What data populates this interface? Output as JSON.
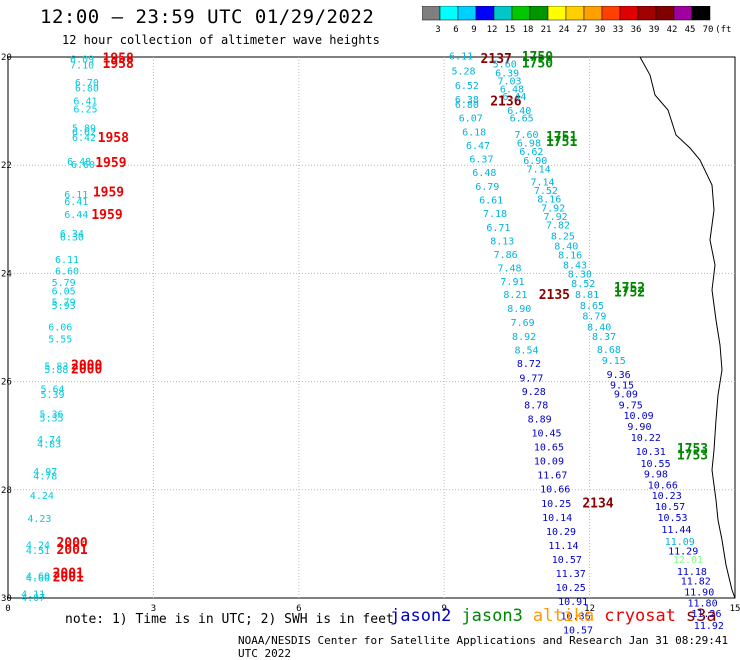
{
  "header": {
    "title": "12:00 – 23:59 UTC 01/29/2022",
    "subtitle": "12 hour collection of altimeter wave heights"
  },
  "scale": {
    "labels": [
      "3",
      "6",
      "9",
      "12",
      "15",
      "18",
      "21",
      "24",
      "27",
      "30",
      "33",
      "36",
      "39",
      "42",
      "45",
      "70",
      "(ft)"
    ],
    "colors": [
      "#7f7f7f",
      "#00ffff",
      "#00d0ff",
      "#0000ff",
      "#00c8c8",
      "#00c800",
      "#009600",
      "#ffff00",
      "#ffd000",
      "#ffa000",
      "#ff4000",
      "#e00000",
      "#a00000",
      "#800000",
      "#a000a0",
      "#000000"
    ]
  },
  "footer": {
    "note": "note: 1) Time is in UTC; 2) SWH is in feet",
    "credit": "NOAA/NESDIS Center for Satellite Applications and Research   Jan 31 08:29:41 UTC 2022"
  },
  "legend": [
    {
      "name": "jason2",
      "color": "#0000cc"
    },
    {
      "name": "jason3",
      "color": "#008800"
    },
    {
      "name": "altika",
      "color": "#ff9900"
    },
    {
      "name": "cryosat",
      "color": "#ee0000"
    },
    {
      "name": "s3a",
      "color": "#880000"
    }
  ],
  "chart_data": {
    "type": "scatter",
    "title": "12:00 – 23:59 UTC 01/29/2022",
    "xlabel": "",
    "ylabel": "",
    "xlim": [
      0,
      15
    ],
    "ylim": [
      20,
      30
    ],
    "y_inverted": true,
    "grid": true,
    "xticks": [
      0,
      3,
      6,
      9,
      12,
      15
    ],
    "yticks": [
      20,
      22,
      24,
      26,
      28,
      30
    ],
    "tick_labels_x": [
      "0",
      "3",
      "6",
      "9",
      "12",
      "15"
    ],
    "tick_labels_y": [
      "20",
      "22",
      "24",
      "26",
      "28",
      "30"
    ],
    "wave_labels": [
      {
        "x": 1.28,
        "y": 20.03,
        "text": "6.09",
        "color": "#00ccdd"
      },
      {
        "x": 1.28,
        "y": 20.14,
        "text": "7.10",
        "color": "#00ccdd"
      },
      {
        "x": 1.38,
        "y": 20.46,
        "text": "6.70",
        "color": "#00ccdd"
      },
      {
        "x": 1.38,
        "y": 20.56,
        "text": "6.80",
        "color": "#00ccdd"
      },
      {
        "x": 1.35,
        "y": 20.8,
        "text": "6.41",
        "color": "#00ccdd"
      },
      {
        "x": 1.35,
        "y": 20.95,
        "text": "6.25",
        "color": "#00ccdd"
      },
      {
        "x": 1.32,
        "y": 21.3,
        "text": "5.89",
        "color": "#00ccdd"
      },
      {
        "x": 1.32,
        "y": 21.38,
        "text": "6.62",
        "color": "#00ccdd"
      },
      {
        "x": 1.32,
        "y": 21.48,
        "text": "6.42",
        "color": "#00ccdd"
      },
      {
        "x": 1.22,
        "y": 21.92,
        "text": "6.48",
        "color": "#00ccdd"
      },
      {
        "x": 1.3,
        "y": 21.98,
        "text": "6.60",
        "color": "#00ccdd"
      },
      {
        "x": 1.16,
        "y": 22.53,
        "text": "6.11",
        "color": "#00ccdd"
      },
      {
        "x": 1.16,
        "y": 22.66,
        "text": "6.41",
        "color": "#00ccdd"
      },
      {
        "x": 1.16,
        "y": 22.9,
        "text": "6.44",
        "color": "#00ccdd"
      },
      {
        "x": 1.07,
        "y": 23.25,
        "text": "6.34",
        "color": "#00ccdd"
      },
      {
        "x": 1.07,
        "y": 23.32,
        "text": "6.30",
        "color": "#00ccdd"
      },
      {
        "x": 0.97,
        "y": 23.73,
        "text": "6.11",
        "color": "#00ccdd"
      },
      {
        "x": 0.97,
        "y": 23.95,
        "text": "6.60",
        "color": "#00ccdd"
      },
      {
        "x": 0.9,
        "y": 24.16,
        "text": "5.79",
        "color": "#00ccdd"
      },
      {
        "x": 0.9,
        "y": 24.32,
        "text": "6.05",
        "color": "#00ccdd"
      },
      {
        "x": 0.9,
        "y": 24.52,
        "text": "5.79",
        "color": "#00ccdd"
      },
      {
        "x": 0.9,
        "y": 24.58,
        "text": "5.93",
        "color": "#00ccdd"
      },
      {
        "x": 0.83,
        "y": 24.98,
        "text": "6.06",
        "color": "#00ccdd"
      },
      {
        "x": 0.83,
        "y": 25.2,
        "text": "5.55",
        "color": "#00ccdd"
      },
      {
        "x": 0.75,
        "y": 25.7,
        "text": "5.83",
        "color": "#00ccdd"
      },
      {
        "x": 0.75,
        "y": 25.77,
        "text": "5.88",
        "color": "#00ccdd"
      },
      {
        "x": 0.67,
        "y": 26.13,
        "text": "5.64",
        "color": "#00ccdd"
      },
      {
        "x": 0.67,
        "y": 26.23,
        "text": "5.39",
        "color": "#00ccdd"
      },
      {
        "x": 0.65,
        "y": 26.59,
        "text": "5.36",
        "color": "#00ccdd"
      },
      {
        "x": 0.65,
        "y": 26.66,
        "text": "5.35",
        "color": "#00ccdd"
      },
      {
        "x": 0.6,
        "y": 27.06,
        "text": "4.74",
        "color": "#00ccdd"
      },
      {
        "x": 0.6,
        "y": 27.14,
        "text": "4.83",
        "color": "#00ccdd"
      },
      {
        "x": 0.52,
        "y": 27.65,
        "text": "4.97",
        "color": "#00ccdd"
      },
      {
        "x": 0.52,
        "y": 27.74,
        "text": "4.78",
        "color": "#00ccdd"
      },
      {
        "x": 0.45,
        "y": 28.1,
        "text": "4.24",
        "color": "#00ccdd"
      },
      {
        "x": 0.4,
        "y": 28.52,
        "text": "4.23",
        "color": "#00ccdd"
      },
      {
        "x": 0.37,
        "y": 29.01,
        "text": "4.24",
        "color": "#00ccdd"
      },
      {
        "x": 0.37,
        "y": 29.11,
        "text": "4.51",
        "color": "#00ccdd"
      },
      {
        "x": 0.37,
        "y": 29.58,
        "text": "4.60",
        "color": "#00ccdd"
      },
      {
        "x": 0.37,
        "y": 29.62,
        "text": "4.60",
        "color": "#00ccdd"
      },
      {
        "x": 0.27,
        "y": 29.92,
        "text": "4.11",
        "color": "#00ccdd"
      },
      {
        "x": 0.27,
        "y": 29.98,
        "text": "4.07",
        "color": "#00ccdd"
      },
      {
        "x": 9.1,
        "y": 19.97,
        "text": "6.11",
        "color": "#00b5dd"
      },
      {
        "x": 9.15,
        "y": 20.25,
        "text": "5.28",
        "color": "#00b5dd"
      },
      {
        "x": 9.22,
        "y": 20.52,
        "text": "6.52",
        "color": "#00b5dd"
      },
      {
        "x": 9.22,
        "y": 20.78,
        "text": "6.38",
        "color": "#00b5dd"
      },
      {
        "x": 9.22,
        "y": 20.87,
        "text": "6.80",
        "color": "#00b5dd"
      },
      {
        "x": 9.3,
        "y": 21.12,
        "text": "6.07",
        "color": "#00b5dd"
      },
      {
        "x": 9.37,
        "y": 21.38,
        "text": "6.18",
        "color": "#00b5dd"
      },
      {
        "x": 9.45,
        "y": 21.63,
        "text": "6.47",
        "color": "#00b5dd"
      },
      {
        "x": 9.52,
        "y": 21.88,
        "text": "6.37",
        "color": "#00b5dd"
      },
      {
        "x": 9.58,
        "y": 22.13,
        "text": "6.48",
        "color": "#00b5dd"
      },
      {
        "x": 9.64,
        "y": 22.38,
        "text": "6.79",
        "color": "#00b5dd"
      },
      {
        "x": 9.72,
        "y": 22.63,
        "text": "6.61",
        "color": "#00b5dd"
      },
      {
        "x": 9.8,
        "y": 22.88,
        "text": "7.18",
        "color": "#00b5dd"
      },
      {
        "x": 9.87,
        "y": 23.14,
        "text": "6.71",
        "color": "#00b5dd"
      },
      {
        "x": 9.95,
        "y": 23.39,
        "text": "8.13",
        "color": "#00b5dd"
      },
      {
        "x": 10.02,
        "y": 23.64,
        "text": "7.86",
        "color": "#00b5dd"
      },
      {
        "x": 10.1,
        "y": 23.89,
        "text": "7.48",
        "color": "#00b5dd"
      },
      {
        "x": 10.16,
        "y": 24.14,
        "text": "7.91",
        "color": "#00b5dd"
      },
      {
        "x": 10.22,
        "y": 24.38,
        "text": "8.21",
        "color": "#00b5dd"
      },
      {
        "x": 10.3,
        "y": 24.64,
        "text": "8.90",
        "color": "#00b5dd"
      },
      {
        "x": 10.37,
        "y": 24.9,
        "text": "7.69",
        "color": "#00b5dd"
      },
      {
        "x": 10.4,
        "y": 25.16,
        "text": "8.92",
        "color": "#00b5dd"
      },
      {
        "x": 10.45,
        "y": 25.41,
        "text": "8.54",
        "color": "#00b5dd"
      },
      {
        "x": 10.5,
        "y": 25.66,
        "text": "8.72",
        "color": "#0000cc"
      },
      {
        "x": 10.55,
        "y": 25.92,
        "text": "9.77",
        "color": "#0000cc"
      },
      {
        "x": 10.6,
        "y": 26.17,
        "text": "9.28",
        "color": "#0000cc"
      },
      {
        "x": 10.65,
        "y": 26.42,
        "text": "8.78",
        "color": "#0000cc"
      },
      {
        "x": 10.72,
        "y": 26.68,
        "text": "8.89",
        "color": "#0000cc"
      },
      {
        "x": 10.8,
        "y": 26.94,
        "text": "10.45",
        "color": "#0000cc"
      },
      {
        "x": 10.85,
        "y": 27.2,
        "text": "10.65",
        "color": "#0000cc"
      },
      {
        "x": 10.85,
        "y": 27.46,
        "text": "10.09",
        "color": "#0000cc"
      },
      {
        "x": 10.92,
        "y": 27.72,
        "text": "11.67",
        "color": "#0000cc"
      },
      {
        "x": 10.98,
        "y": 27.98,
        "text": "10.66",
        "color": "#0000cc"
      },
      {
        "x": 11.0,
        "y": 28.24,
        "text": "10.25",
        "color": "#0000cc"
      },
      {
        "x": 11.02,
        "y": 28.5,
        "text": "10.14",
        "color": "#0000cc"
      },
      {
        "x": 11.1,
        "y": 28.76,
        "text": "10.29",
        "color": "#0000cc"
      },
      {
        "x": 11.15,
        "y": 29.02,
        "text": "11.14",
        "color": "#0000cc"
      },
      {
        "x": 11.22,
        "y": 29.28,
        "text": "10.57",
        "color": "#0000cc"
      },
      {
        "x": 11.3,
        "y": 29.54,
        "text": "11.37",
        "color": "#0000cc"
      },
      {
        "x": 11.3,
        "y": 29.8,
        "text": "10.25",
        "color": "#0000cc"
      },
      {
        "x": 11.35,
        "y": 30.06,
        "text": "10.91",
        "color": "#0000cc"
      },
      {
        "x": 11.4,
        "y": 30.32,
        "text": "10.36",
        "color": "#0000cc"
      },
      {
        "x": 11.45,
        "y": 30.58,
        "text": "10.57",
        "color": "#0000cc"
      },
      {
        "x": 9.75,
        "y": 20.04,
        "text": "2137",
        "color": "#880000"
      },
      {
        "x": 9.95,
        "y": 20.82,
        "text": "2136",
        "color": "#880000"
      },
      {
        "x": 10.95,
        "y": 24.4,
        "text": "2135",
        "color": "#880000"
      },
      {
        "x": 11.85,
        "y": 28.25,
        "text": "2134",
        "color": "#880000"
      },
      {
        "x": 10.6,
        "y": 20.0,
        "text": "1750",
        "color": "#008800"
      },
      {
        "x": 10.6,
        "y": 20.12,
        "text": "1750",
        "color": "#008800"
      },
      {
        "x": 11.1,
        "y": 21.48,
        "text": "1751",
        "color": "#008800"
      },
      {
        "x": 11.1,
        "y": 21.57,
        "text": "1751",
        "color": "#008800"
      },
      {
        "x": 12.5,
        "y": 24.27,
        "text": "1752",
        "color": "#008800"
      },
      {
        "x": 12.5,
        "y": 24.35,
        "text": "1752",
        "color": "#008800"
      },
      {
        "x": 13.8,
        "y": 27.25,
        "text": "1753",
        "color": "#008800"
      },
      {
        "x": 13.8,
        "y": 27.37,
        "text": "1753",
        "color": "#008800"
      },
      {
        "x": 1.95,
        "y": 20.03,
        "text": "1958",
        "color": "#ee0000"
      },
      {
        "x": 1.95,
        "y": 20.13,
        "text": "1958",
        "color": "#ee0000"
      },
      {
        "x": 1.85,
        "y": 21.5,
        "text": "1958",
        "color": "#ee0000"
      },
      {
        "x": 1.8,
        "y": 21.96,
        "text": "1959",
        "color": "#ee0000"
      },
      {
        "x": 1.75,
        "y": 22.5,
        "text": "1959",
        "color": "#ee0000"
      },
      {
        "x": 1.72,
        "y": 22.92,
        "text": "1959",
        "color": "#ee0000"
      },
      {
        "x": 1.3,
        "y": 25.7,
        "text": "2000",
        "color": "#ee0000"
      },
      {
        "x": 1.3,
        "y": 25.78,
        "text": "2000",
        "color": "#ee0000"
      },
      {
        "x": 1.0,
        "y": 28.98,
        "text": "2000",
        "color": "#ee0000"
      },
      {
        "x": 1.0,
        "y": 29.11,
        "text": "2001",
        "color": "#ee0000"
      },
      {
        "x": 0.92,
        "y": 29.55,
        "text": "2001",
        "color": "#ee0000"
      },
      {
        "x": 0.92,
        "y": 29.62,
        "text": "2001",
        "color": "#ee0000"
      }
    ],
    "dense_track_labels": [
      {
        "x": 10.0,
        "y": 20.12,
        "text": "5.60",
        "color": "#00b5dd"
      },
      {
        "x": 10.05,
        "y": 20.29,
        "text": "6.39",
        "color": "#00b5dd"
      },
      {
        "x": 10.1,
        "y": 20.43,
        "text": "7.03",
        "color": "#00b5dd"
      },
      {
        "x": 10.15,
        "y": 20.58,
        "text": "6.48",
        "color": "#00b5dd"
      },
      {
        "x": 10.2,
        "y": 20.72,
        "text": "6.44",
        "color": "#00b5dd"
      },
      {
        "x": 10.3,
        "y": 20.98,
        "text": "6.40",
        "color": "#00b5dd"
      },
      {
        "x": 10.35,
        "y": 21.12,
        "text": "6.65",
        "color": "#00b5dd"
      },
      {
        "x": 10.45,
        "y": 21.42,
        "text": "7.60",
        "color": "#00b5dd"
      },
      {
        "x": 10.5,
        "y": 21.58,
        "text": "6.98",
        "color": "#00b5dd"
      },
      {
        "x": 10.55,
        "y": 21.74,
        "text": "6.62",
        "color": "#00b5dd"
      },
      {
        "x": 10.63,
        "y": 21.9,
        "text": "6.90",
        "color": "#00b5dd"
      },
      {
        "x": 10.7,
        "y": 22.06,
        "text": "7.14",
        "color": "#00b5dd"
      },
      {
        "x": 10.78,
        "y": 22.3,
        "text": "7.14",
        "color": "#00b5dd"
      },
      {
        "x": 10.85,
        "y": 22.46,
        "text": "7.52",
        "color": "#00b5dd"
      },
      {
        "x": 10.92,
        "y": 22.62,
        "text": "8.16",
        "color": "#00b5dd"
      },
      {
        "x": 11.0,
        "y": 22.78,
        "text": "7.92",
        "color": "#00b5dd"
      },
      {
        "x": 11.05,
        "y": 22.94,
        "text": "7.92",
        "color": "#00b5dd"
      },
      {
        "x": 11.1,
        "y": 23.1,
        "text": "7.82",
        "color": "#00b5dd"
      },
      {
        "x": 11.2,
        "y": 23.3,
        "text": "8.25",
        "color": "#00b5dd"
      },
      {
        "x": 11.27,
        "y": 23.48,
        "text": "8.40",
        "color": "#00b5dd"
      },
      {
        "x": 11.35,
        "y": 23.65,
        "text": "8.16",
        "color": "#00b5dd"
      },
      {
        "x": 11.45,
        "y": 23.84,
        "text": "8.43",
        "color": "#00b5dd"
      },
      {
        "x": 11.55,
        "y": 24.0,
        "text": "8.30",
        "color": "#00b5dd"
      },
      {
        "x": 11.62,
        "y": 24.18,
        "text": "8.52",
        "color": "#00b5dd"
      },
      {
        "x": 11.7,
        "y": 24.38,
        "text": "8.81",
        "color": "#00b5dd"
      },
      {
        "x": 11.8,
        "y": 24.58,
        "text": "8.65",
        "color": "#00b5dd"
      },
      {
        "x": 11.85,
        "y": 24.78,
        "text": "8.79",
        "color": "#00b5dd"
      },
      {
        "x": 11.95,
        "y": 24.98,
        "text": "8.40",
        "color": "#00b5dd"
      },
      {
        "x": 12.05,
        "y": 25.16,
        "text": "8.37",
        "color": "#00b5dd"
      },
      {
        "x": 12.15,
        "y": 25.4,
        "text": "8.68",
        "color": "#00b5dd"
      },
      {
        "x": 12.25,
        "y": 25.6,
        "text": "9.15",
        "color": "#00b5dd"
      },
      {
        "x": 12.35,
        "y": 25.86,
        "text": "9.36",
        "color": "#0000cc"
      },
      {
        "x": 12.42,
        "y": 26.05,
        "text": "9.15",
        "color": "#0000cc"
      },
      {
        "x": 12.5,
        "y": 26.22,
        "text": "9.09",
        "color": "#0000cc"
      },
      {
        "x": 12.6,
        "y": 26.42,
        "text": "9.75",
        "color": "#0000cc"
      },
      {
        "x": 12.7,
        "y": 26.62,
        "text": "10.09",
        "color": "#0000cc"
      },
      {
        "x": 12.78,
        "y": 26.82,
        "text": "9.90",
        "color": "#0000cc"
      },
      {
        "x": 12.85,
        "y": 27.02,
        "text": "10.22",
        "color": "#0000cc"
      },
      {
        "x": 12.95,
        "y": 27.28,
        "text": "10.31",
        "color": "#0000cc"
      },
      {
        "x": 13.05,
        "y": 27.5,
        "text": "10.55",
        "color": "#0000cc"
      },
      {
        "x": 13.12,
        "y": 27.7,
        "text": "9.98",
        "color": "#0000cc"
      },
      {
        "x": 13.2,
        "y": 27.9,
        "text": "10.66",
        "color": "#0000cc"
      },
      {
        "x": 13.28,
        "y": 28.1,
        "text": "10.23",
        "color": "#0000cc"
      },
      {
        "x": 13.35,
        "y": 28.3,
        "text": "10.57",
        "color": "#0000cc"
      },
      {
        "x": 13.4,
        "y": 28.5,
        "text": "10.53",
        "color": "#0000cc"
      },
      {
        "x": 13.48,
        "y": 28.72,
        "text": "11.44",
        "color": "#0000cc"
      },
      {
        "x": 13.55,
        "y": 28.95,
        "text": "11.09",
        "color": "#00b5dd"
      },
      {
        "x": 13.62,
        "y": 29.12,
        "text": "11.29",
        "color": "#0000cc"
      },
      {
        "x": 13.72,
        "y": 29.28,
        "text": "12.01",
        "color": "#80ff80"
      },
      {
        "x": 13.8,
        "y": 29.5,
        "text": "11.18",
        "color": "#0000cc"
      },
      {
        "x": 13.88,
        "y": 29.68,
        "text": "11.82",
        "color": "#0000cc"
      },
      {
        "x": 13.95,
        "y": 29.88,
        "text": "11.90",
        "color": "#0000cc"
      },
      {
        "x": 14.02,
        "y": 30.08,
        "text": "11.80",
        "color": "#0000cc"
      },
      {
        "x": 14.1,
        "y": 30.28,
        "text": "11.26",
        "color": "#0000cc"
      },
      {
        "x": 14.15,
        "y": 30.5,
        "text": "11.92",
        "color": "#0000cc"
      }
    ]
  }
}
